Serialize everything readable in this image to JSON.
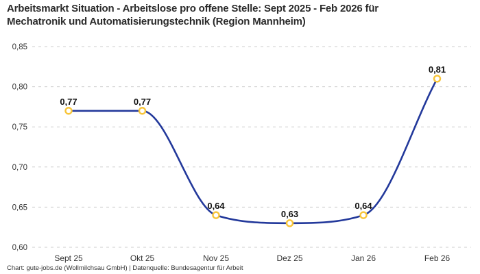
{
  "header": {
    "title": "Arbeitsmarkt Situation - Arbeitslose pro offene Stelle: Sept 2025 - Feb 2026 für Mechatronik und Automatisierungstechnik (Region Mannheim)"
  },
  "footer": {
    "credit": "Chart: gute-jobs.de (Wollmilchsau GmbH) | Datenquelle: Bundesagentur für Arbeit"
  },
  "colors": {
    "line": "#23399b",
    "marker_stroke": "#f8c53a",
    "marker_fill": "#ffffff",
    "grid": "#cccccc",
    "axis_text": "#333333",
    "value_label": "#111111",
    "title_text": "#2b2b2b",
    "background": "#ffffff"
  },
  "chart_data": {
    "type": "line",
    "title": "Arbeitsmarkt Situation - Arbeitslose pro offene Stelle: Sept 2025 - Feb 2026 für Mechatronik und Automatisierungstechnik (Region Mannheim)",
    "categories": [
      "Sept 25",
      "Okt 25",
      "Nov 25",
      "Dez 25",
      "Jan 26",
      "Feb 26"
    ],
    "values": [
      0.77,
      0.77,
      0.64,
      0.63,
      0.64,
      0.81
    ],
    "value_labels": [
      "0,77",
      "0,77",
      "0,64",
      "0,63",
      "0,64",
      "0,81"
    ],
    "xlabel": "",
    "ylabel": "",
    "ylim": [
      0.6,
      0.85
    ],
    "y_ticks": {
      "values": [
        0.85,
        0.8,
        0.75,
        0.7,
        0.65,
        0.6
      ],
      "labels": [
        "0,85",
        "0,80",
        "0,75",
        "0,70",
        "0,65",
        "0,60"
      ]
    },
    "grid": "horizontal-dashed",
    "legend": "none",
    "interpolation": "monotone-spline",
    "marker_shape": "open-circle"
  }
}
